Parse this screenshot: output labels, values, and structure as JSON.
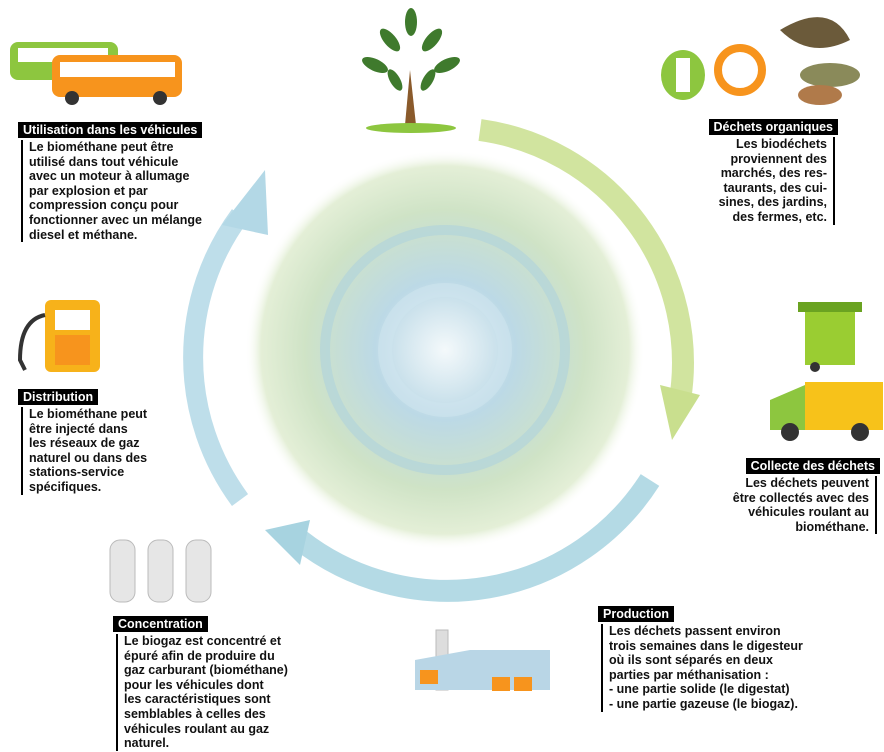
{
  "sections": [
    {
      "title": "Utilisation dans les véhicules",
      "lines": [
        "Le biométhane peut être",
        "utilisé dans tout véhicule",
        "avec un moteur à allumage",
        "par explosion et par",
        "compression conçu pour",
        "fonctionner avec un mélange",
        "diesel et méthane."
      ]
    },
    {
      "title": "Déchets organiques",
      "lines": [
        "Les biodéchets",
        "proviennent des",
        "marchés, des res-",
        "taurants, des cui-",
        "sines, des jardins,",
        "des fermes, etc."
      ]
    },
    {
      "title": "Distribution",
      "lines": [
        "Le biométhane peut",
        "être injecté dans",
        "les réseaux de gaz",
        "naturel ou dans des",
        "stations-service",
        "spécifiques."
      ]
    },
    {
      "title": "Collecte des déchets",
      "lines": [
        "Les déchets peuvent",
        "être collectés avec des",
        "véhicules roulant au",
        "biométhane."
      ]
    },
    {
      "title": "Concentration",
      "lines": [
        "Le biogaz est concentré et",
        "épuré afin de produire du",
        "gaz carburant (biométhane)",
        "pour les véhicules dont",
        "les caractéristiques sont",
        "semblables à celles des",
        "véhicules roulant au gaz",
        "naturel."
      ]
    },
    {
      "title": "Production",
      "lines": [
        "Les déchets passent environ",
        "trois semaines dans le digesteur",
        "où ils sont séparés en deux",
        "parties par méthanisation :",
        "- une partie solide (le digestat)",
        "- une partie gazeuse (le biogaz)."
      ]
    }
  ]
}
